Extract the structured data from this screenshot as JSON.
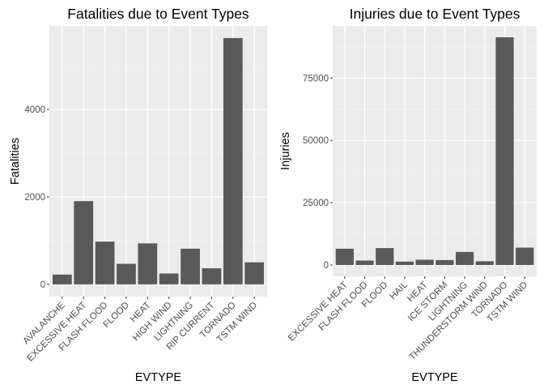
{
  "chart_data": [
    {
      "type": "bar",
      "title": "Fatalities due to Event Types",
      "xlabel": "EVTYPE",
      "ylabel": "Fatalities",
      "categories": [
        "AVALANCHE",
        "EXCESSIVE HEAT",
        "FLASH FLOOD",
        "FLOOD",
        "HEAT",
        "HIGH WIND",
        "LIGHTNING",
        "RIP CURRENT",
        "TORNADO",
        "TSTM WIND"
      ],
      "values": [
        224,
        1903,
        978,
        470,
        937,
        248,
        816,
        368,
        5633,
        504
      ],
      "ylim": [
        -280,
        5910
      ],
      "yticks": [
        0,
        2000,
        4000
      ],
      "yticklabels": [
        "0",
        "2000",
        "4000"
      ],
      "grid": true,
      "color": "#595959",
      "background": "#ebebeb"
    },
    {
      "type": "bar",
      "title": "Injuries due to Event Types",
      "xlabel": "EVTYPE",
      "ylabel": "Injuries",
      "categories": [
        "EXCESSIVE HEAT",
        "FLASH FLOOD",
        "FLOOD",
        "HAIL",
        "HEAT",
        "ICE STORM",
        "LIGHTNING",
        "THUNDERSTORM WIND",
        "TORNADO",
        "TSTM WIND"
      ],
      "values": [
        6525,
        1777,
        6789,
        1361,
        2100,
        1975,
        5230,
        1488,
        91346,
        6957
      ],
      "ylim": [
        -4560,
        95900
      ],
      "yticks": [
        0,
        25000,
        50000,
        75000
      ],
      "yticklabels": [
        "0",
        "25000",
        "50000",
        "75000"
      ],
      "grid": true,
      "color": "#595959",
      "background": "#ebebeb"
    }
  ]
}
